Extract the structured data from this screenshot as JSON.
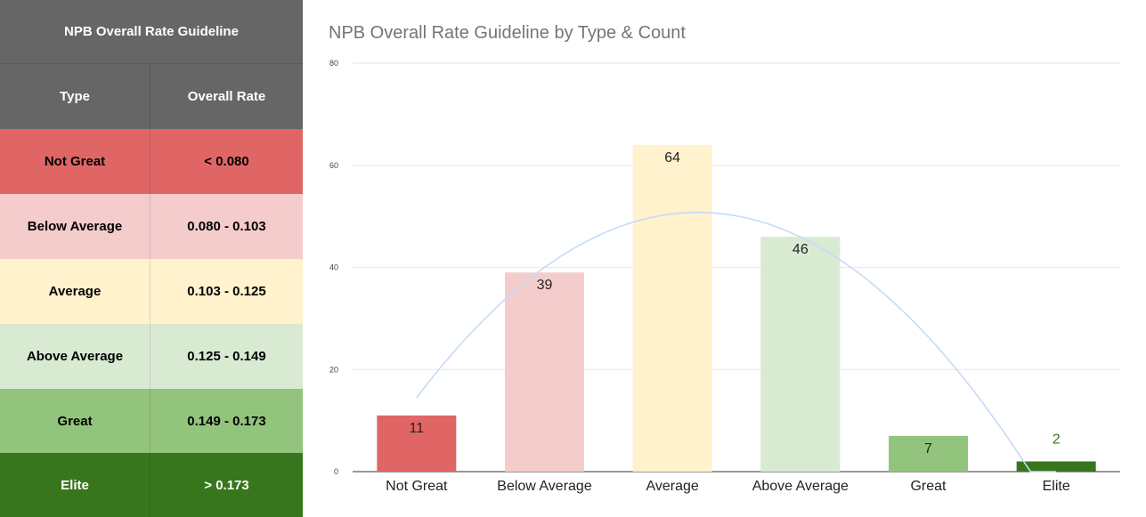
{
  "table": {
    "title": "NPB Overall Rate Guideline",
    "headers": [
      "Type",
      "Overall Rate"
    ],
    "rows": [
      {
        "type": "Not Great",
        "rate": "< 0.080",
        "bg": "#e06666",
        "fg": "#000000"
      },
      {
        "type": "Below Average",
        "rate": "0.080 - 0.103",
        "bg": "#f4cccc",
        "fg": "#000000"
      },
      {
        "type": "Average",
        "rate": "0.103 - 0.125",
        "bg": "#fff2cc",
        "fg": "#000000"
      },
      {
        "type": "Above Average",
        "rate": "0.125 - 0.149",
        "bg": "#d9ead3",
        "fg": "#000000"
      },
      {
        "type": "Great",
        "rate": "0.149 - 0.173",
        "bg": "#93c47d",
        "fg": "#000000"
      },
      {
        "type": "Elite",
        "rate": "> 0.173",
        "bg": "#38761d",
        "fg": "#ffffff"
      }
    ]
  },
  "chart_data": {
    "type": "bar",
    "title": "NPB Overall Rate Guideline by Type & Count",
    "categories": [
      "Not Great",
      "Below Average",
      "Average",
      "Above Average",
      "Great",
      "Elite"
    ],
    "values": [
      11,
      39,
      64,
      46,
      7,
      2
    ],
    "bar_colors": [
      "#e06666",
      "#f4cccc",
      "#fff2cc",
      "#d9ead3",
      "#93c47d",
      "#38761d"
    ],
    "label_colors": [
      "#222222",
      "#222222",
      "#222222",
      "#222222",
      "#222222",
      "#38761d"
    ],
    "ylim": [
      0,
      80
    ],
    "yticks": [
      0,
      20,
      40,
      60,
      80
    ],
    "grid": true,
    "xlabel": "",
    "ylabel": "",
    "trendline": {
      "type": "polynomial",
      "color": "#c6dbf7"
    }
  }
}
